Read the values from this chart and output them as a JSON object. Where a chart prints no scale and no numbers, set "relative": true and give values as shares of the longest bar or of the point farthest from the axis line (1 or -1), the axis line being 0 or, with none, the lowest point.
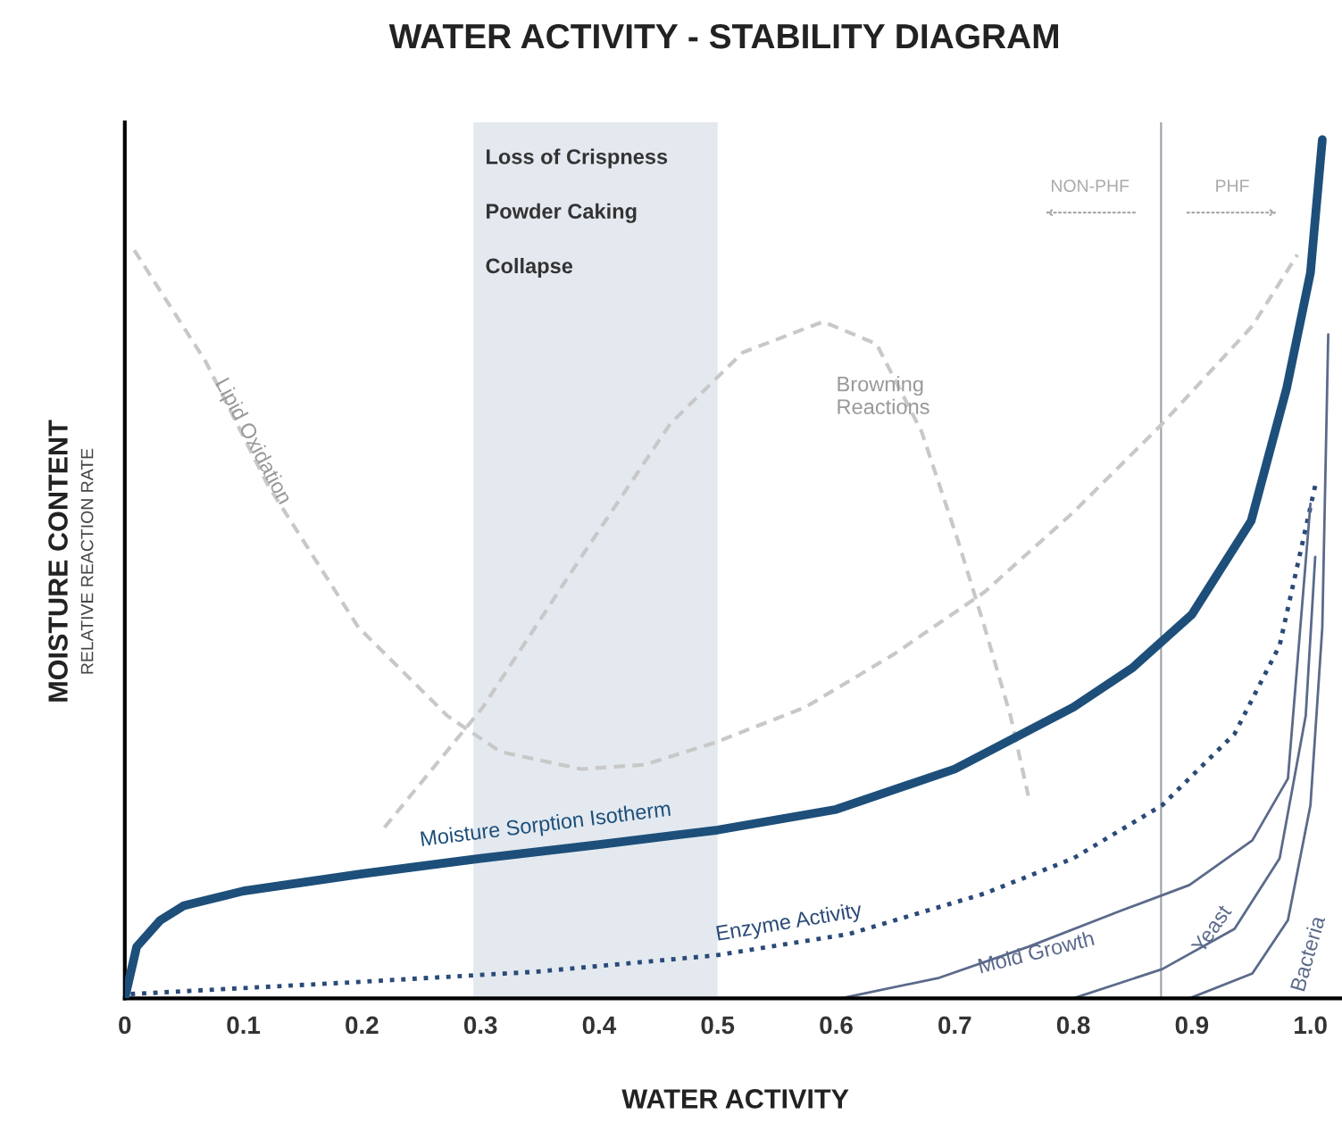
{
  "chart_data": {
    "type": "line",
    "title": "WATER ACTIVITY - STABILITY DIAGRAM",
    "xlabel": "WATER ACTIVITY",
    "ylabel": "MOISTURE CONTENT",
    "relative": true,
    "grid": false,
    "marker": "none",
    "xlim": [
      0,
      1.03
    ],
    "xticks": [
      0,
      0.1,
      0.2,
      0.3,
      0.4,
      0.5,
      0.6,
      0.7,
      0.8,
      0.9,
      {
        "value": 1.0,
        "label": "1.0"
      }
    ],
    "bands": [
      {
        "axis": "x",
        "from": 0.294,
        "to": 0.5,
        "label": "Loss of Crispness\n\nPowder Caking\n\nCollapse",
        "color": "#e3e9ef"
      }
    ],
    "ref_lines": [
      {
        "axis": "x",
        "value": 0.874,
        "label": null,
        "color": "#9aa0a8",
        "line_style": "solid"
      }
    ],
    "annotations": [
      "RELATIVE REACTION RATE",
      "NON-PHF",
      "PHF"
    ],
    "series": [
      {
        "name": "Lipid Oxidation",
        "color": "#c8c8c8",
        "line_style": "dashed",
        "x": [
          0.008,
          0.068,
          0.121,
          0.197,
          0.272,
          0.317,
          0.385,
          0.438,
          0.498,
          0.574,
          0.649,
          0.725,
          0.8,
          0.875,
          0.951,
          0.989
        ],
        "values": [
          0.871,
          0.742,
          0.597,
          0.432,
          0.329,
          0.287,
          0.267,
          0.272,
          0.298,
          0.339,
          0.401,
          0.473,
          0.566,
          0.669,
          0.783,
          0.866
        ]
      },
      {
        "name": "Browning\nReactions",
        "color": "#c8c8c8",
        "line_style": "dashed",
        "x": [
          0.219,
          0.302,
          0.385,
          0.46,
          0.521,
          0.589,
          0.634,
          0.672,
          0.702,
          0.725,
          0.747,
          0.762
        ],
        "values": [
          0.199,
          0.339,
          0.514,
          0.669,
          0.752,
          0.788,
          0.762,
          0.66,
          0.536,
          0.433,
          0.329,
          0.236
        ]
      },
      {
        "name": "Moisture Sorption Isotherm",
        "color": "#1d4f7a",
        "line_style": "solid",
        "x": [
          0,
          0.01,
          0.03,
          0.05,
          0.1,
          0.2,
          0.3,
          0.4,
          0.5,
          0.6,
          0.7,
          0.8,
          0.85,
          0.9,
          0.95,
          0.98,
          1.0,
          1.01
        ],
        "values": [
          0,
          0.06,
          0.091,
          0.108,
          0.125,
          0.145,
          0.163,
          0.179,
          0.196,
          0.22,
          0.267,
          0.339,
          0.385,
          0.447,
          0.556,
          0.711,
          0.845,
          1.0
        ]
      },
      {
        "name": "Enzyme Activity",
        "color": "#2a4a78",
        "line_style": "dotted",
        "x": [
          0.005,
          0.196,
          0.347,
          0.498,
          0.611,
          0.725,
          0.8,
          0.875,
          0.936,
          0.974,
          1.004
        ],
        "values": [
          0.005,
          0.019,
          0.031,
          0.05,
          0.075,
          0.122,
          0.163,
          0.225,
          0.308,
          0.411,
          0.597
        ]
      },
      {
        "name": "Mold Growth",
        "color": "#5b6a8a",
        "line_style": "solid",
        "x": [
          0.604,
          0.687,
          0.762,
          0.838,
          0.898,
          0.951,
          0.981,
          1.0
        ],
        "values": [
          0,
          0.024,
          0.06,
          0.101,
          0.132,
          0.184,
          0.256,
          0.576
        ]
      },
      {
        "name": "Yeast",
        "color": "#5b6a8a",
        "line_style": "solid",
        "x": [
          0.8,
          0.875,
          0.936,
          0.974,
          0.996,
          1.004
        ],
        "values": [
          0,
          0.034,
          0.081,
          0.163,
          0.329,
          0.514
        ]
      },
      {
        "name": "Bacteria",
        "color": "#5b6a8a",
        "line_style": "solid",
        "x": [
          0.898,
          0.951,
          0.981,
          1.0,
          1.01,
          1.015
        ],
        "values": [
          0,
          0.029,
          0.091,
          0.225,
          0.432,
          0.773
        ]
      }
    ]
  }
}
